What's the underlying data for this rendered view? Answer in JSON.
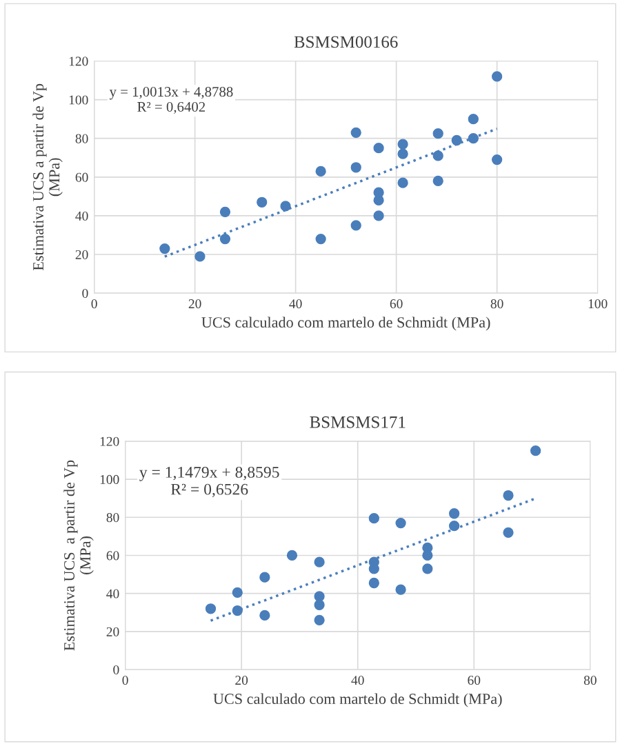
{
  "chart_data": [
    {
      "type": "scatter",
      "title": "BSMSM00166",
      "xlabel": "UCS calculado com martelo de Schmidt (MPa)",
      "ylabel": "Estimativa UCS a partir de Vp\n(MPa)",
      "xlim": [
        0,
        100
      ],
      "ylim": [
        0,
        120
      ],
      "xticks": [
        0,
        20,
        40,
        60,
        80,
        100
      ],
      "yticks": [
        0,
        20,
        40,
        60,
        80,
        100,
        120
      ],
      "grid": true,
      "annotations": [
        "y = 1,0013x + 4,8788\nR² = 0,6402"
      ],
      "series": [
        {
          "color": "#4a7ebb",
          "marker": "circle",
          "x": [
            14,
            21,
            26,
            26,
            33.3,
            38,
            45,
            45,
            52,
            52,
            52,
            56.5,
            56.5,
            56.5,
            56.5,
            61.3,
            61.3,
            61.3,
            68.3,
            68.3,
            68.3,
            72,
            75.3,
            75.3,
            80,
            80
          ],
          "values": [
            23,
            19,
            42,
            28,
            47,
            45,
            63,
            28,
            83,
            65,
            35,
            75,
            52,
            48,
            40,
            77,
            72,
            57,
            82.5,
            71,
            58,
            79,
            90,
            80,
            112,
            69
          ]
        },
        {
          "type": "line",
          "line_style": "dotted",
          "color": "#4a7ebb",
          "x": [
            14,
            80
          ],
          "values": [
            18.9,
            85.0
          ]
        }
      ]
    },
    {
      "type": "scatter",
      "title": "BSMSMS171",
      "xlabel": "UCS calculado com martelo de Schmidt (MPa)",
      "ylabel": "Estimativa UCS  a partir de Vp\n(MPa)",
      "xlim": [
        0,
        80
      ],
      "ylim": [
        0,
        120
      ],
      "xticks": [
        0,
        20,
        40,
        60,
        80
      ],
      "yticks": [
        0,
        20,
        40,
        60,
        80,
        100,
        120
      ],
      "grid": true,
      "annotations": [
        "y = 1,1479x + 8,8595\nR² = 0,6526"
      ],
      "series": [
        {
          "color": "#4a7ebb",
          "marker": "circle",
          "x": [
            14.7,
            19.3,
            19.3,
            24,
            24,
            28.7,
            33.4,
            33.4,
            33.4,
            33.4,
            42.8,
            42.8,
            42.8,
            42.8,
            47.4,
            47.4,
            52,
            52,
            52,
            56.6,
            56.6,
            65.9,
            65.9,
            70.6
          ],
          "values": [
            32,
            40.5,
            31,
            48.5,
            28.5,
            60,
            56.5,
            38.5,
            34,
            26,
            79.5,
            56.5,
            53,
            45.5,
            77,
            42,
            64,
            60,
            53,
            82,
            75.5,
            91.5,
            72,
            115
          ]
        },
        {
          "type": "line",
          "line_style": "dotted",
          "color": "#4a7ebb",
          "x": [
            14.7,
            70.6
          ],
          "values": [
            25.7,
            89.9
          ]
        }
      ]
    }
  ]
}
